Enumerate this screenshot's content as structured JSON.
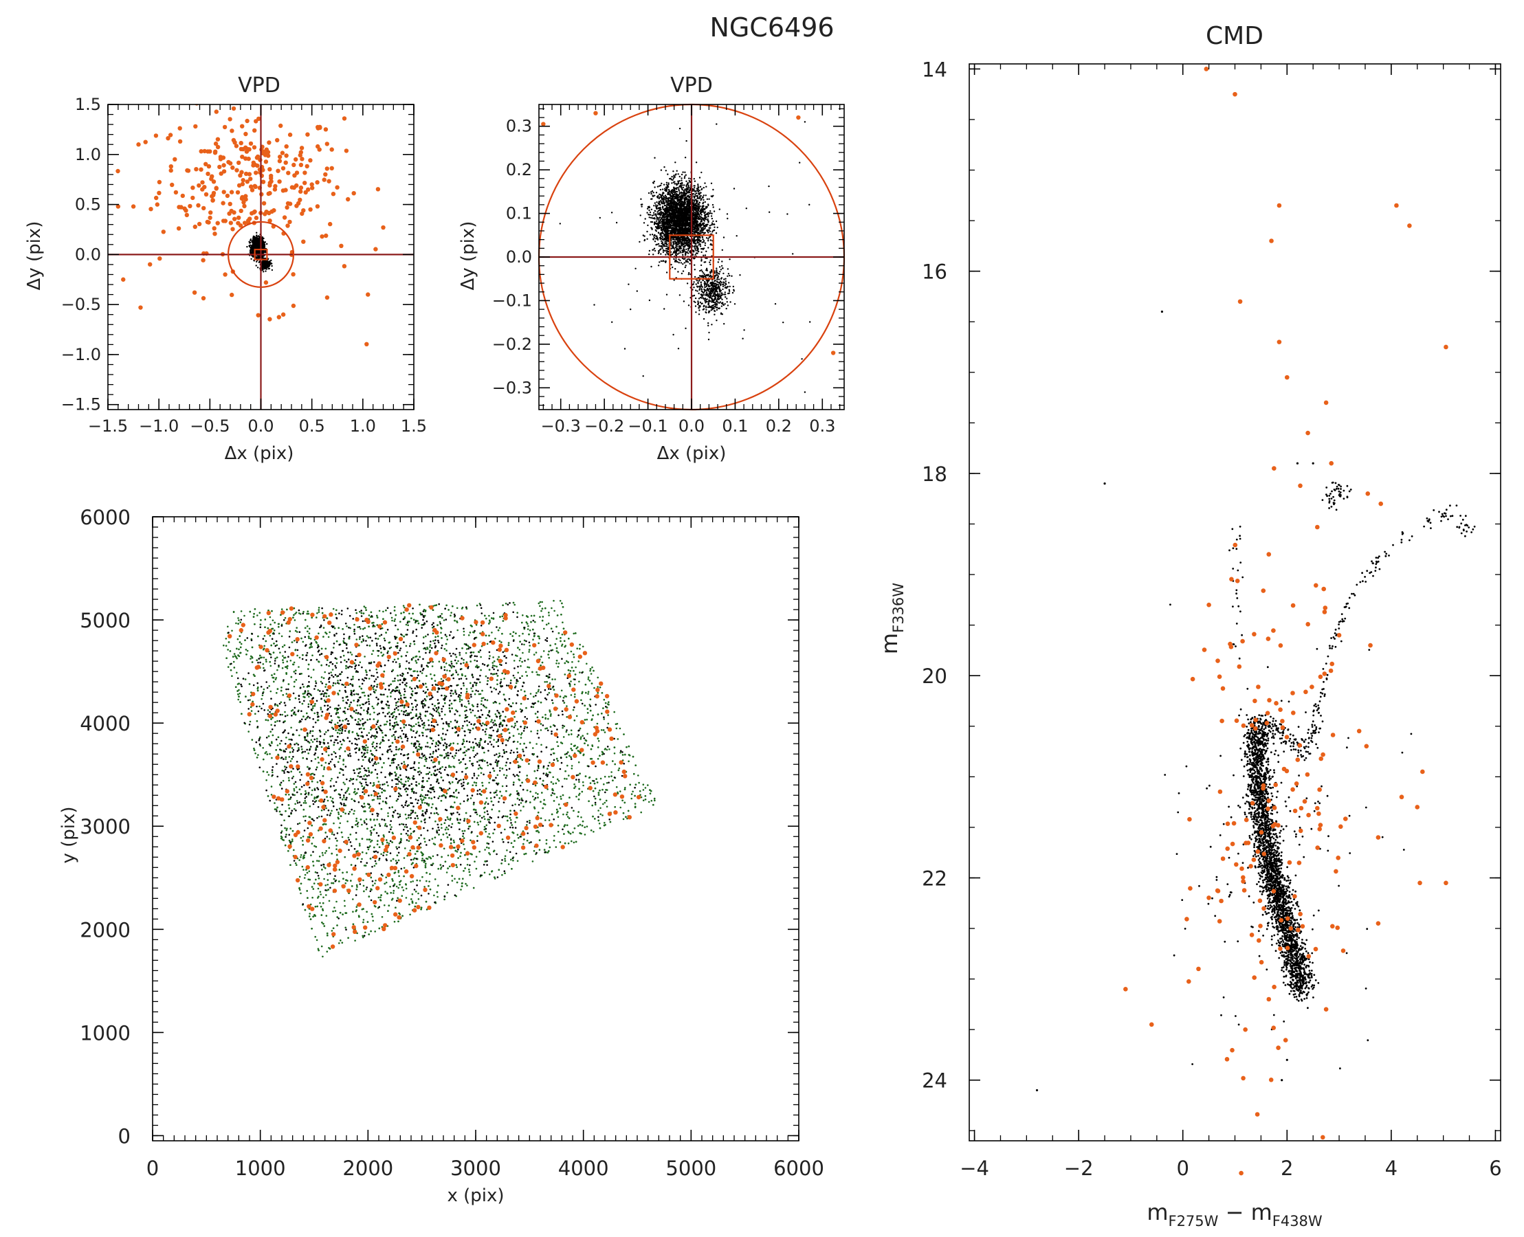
{
  "figure_title": "NGC6496",
  "chart_data": [
    {
      "id": "vpd1",
      "type": "scatter",
      "title": "VPD",
      "xlabel_parts": [
        "Δx",
        " (pix)"
      ],
      "ylabel_parts": [
        "Δy",
        " (pix)"
      ],
      "xlim": [
        -1.5,
        1.5
      ],
      "ylim": [
        -1.55,
        1.5
      ],
      "xticks": [
        -1.5,
        -1.0,
        -0.5,
        0.0,
        0.5,
        1.0,
        1.5
      ],
      "xtick_labels": [
        "−1.5",
        "−1.0",
        "−0.5",
        "0.0",
        "0.5",
        "1.0",
        "1.5"
      ],
      "yticks": [
        -1.5,
        -1.0,
        -0.5,
        0.0,
        0.5,
        1.0,
        1.5
      ],
      "ytick_labels": [
        "−1.5",
        "−1.0",
        "−0.5",
        "0.0",
        "0.5",
        "1.0",
        "1.5"
      ],
      "crosshair": [
        0,
        0
      ],
      "selection_circle": {
        "center": [
          0,
          0
        ],
        "radius": 0.32
      },
      "selection_box": {
        "x": [
          -0.06,
          0.06
        ],
        "y": [
          -0.05,
          0.05
        ]
      },
      "series": [
        {
          "color": "#e8611a",
          "kind": "field",
          "clouds": [
            {
              "n": 290,
              "cx": -0.1,
              "cy": 0.75,
              "sx": 0.45,
              "sy": 0.35
            },
            {
              "n": 26,
              "cx": -0.2,
              "cy": 0.0,
              "sx": 0.55,
              "sy": 0.35
            }
          ],
          "points": [
            [
              -1.4,
              0.48
            ],
            [
              -1.25,
              0.48
            ],
            [
              -1.2,
              1.1
            ],
            [
              -1.18,
              -0.53
            ],
            [
              -1.35,
              -0.25
            ],
            [
              -0.65,
              -0.38
            ],
            [
              1.05,
              -0.4
            ],
            [
              1.2,
              0.27
            ],
            [
              0.65,
              -0.43
            ],
            [
              0.22,
              -0.6
            ],
            [
              0.05,
              -0.28
            ],
            [
              0.5,
              0.7
            ],
            [
              -0.35,
              -0.2
            ],
            [
              0.6,
              0.18
            ]
          ]
        },
        {
          "color": "#000000",
          "kind": "cluster",
          "clouds": [
            {
              "n": 1400,
              "cx": -0.03,
              "cy": 0.07,
              "sx": 0.028,
              "sy": 0.045
            },
            {
              "n": 260,
              "cx": 0.04,
              "cy": -0.09,
              "sx": 0.025,
              "sy": 0.03
            }
          ],
          "points": []
        }
      ]
    },
    {
      "id": "vpd2",
      "type": "scatter",
      "title": "VPD",
      "xlabel_parts": [
        "Δx",
        " (pix)"
      ],
      "ylabel_parts": [
        "Δy",
        " (pix)"
      ],
      "xlim": [
        -0.35,
        0.35
      ],
      "ylim": [
        -0.35,
        0.35
      ],
      "xticks": [
        -0.3,
        -0.2,
        -0.1,
        0.0,
        0.1,
        0.2,
        0.3
      ],
      "xtick_labels": [
        "−0.3",
        "−0.2",
        "−0.1",
        "0.0",
        "0.1",
        "0.2",
        "0.3"
      ],
      "yticks": [
        -0.3,
        -0.2,
        -0.1,
        0.0,
        0.1,
        0.2,
        0.3
      ],
      "ytick_labels": [
        "−0.3",
        "−0.2",
        "−0.1",
        "0.0",
        "0.1",
        "0.2",
        "0.3"
      ],
      "crosshair": [
        0,
        0
      ],
      "selection_circle": {
        "center": [
          0,
          0
        ],
        "radius": 0.35
      },
      "selection_box": {
        "x": [
          -0.05,
          0.05
        ],
        "y": [
          -0.05,
          0.05
        ]
      },
      "series": [
        {
          "color": "#e8611a",
          "kind": "field",
          "clouds": [],
          "points": [
            [
              -0.34,
              0.305
            ],
            [
              -0.22,
              0.33
            ],
            [
              0.245,
              0.32
            ],
            [
              0.325,
              -0.22
            ]
          ]
        },
        {
          "color": "#000000",
          "kind": "cluster",
          "clouds": [
            {
              "n": 3200,
              "cx": -0.025,
              "cy": 0.085,
              "sx": 0.03,
              "sy": 0.04
            },
            {
              "n": 520,
              "cx": 0.045,
              "cy": -0.075,
              "sx": 0.02,
              "sy": 0.028
            },
            {
              "n": 55,
              "cx": 0.0,
              "cy": 0.0,
              "sx": 0.13,
              "sy": 0.13
            }
          ],
          "points": [
            [
              -0.21,
              0.09
            ],
            [
              -0.14,
              -0.12
            ],
            [
              -0.03,
              -0.21
            ],
            [
              0.26,
              -0.31
            ],
            [
              0.21,
              -0.15
            ],
            [
              0.26,
              0.31
            ],
            [
              0.27,
              0.12
            ]
          ]
        }
      ]
    },
    {
      "id": "map",
      "type": "scatter",
      "title": "",
      "xlabel_parts": [
        "x (pix)"
      ],
      "ylabel_parts": [
        "y (pix)"
      ],
      "xlim": [
        0,
        6000
      ],
      "ylim": [
        -50,
        6000
      ],
      "xticks": [
        0,
        1000,
        2000,
        3000,
        4000,
        5000,
        6000
      ],
      "xtick_labels": [
        "0",
        "1000",
        "2000",
        "3000",
        "4000",
        "5000",
        "6000"
      ],
      "yticks": [
        0,
        1000,
        2000,
        3000,
        4000,
        5000,
        6000
      ],
      "ytick_labels": [
        "0",
        "1000",
        "2000",
        "3000",
        "4000",
        "5000",
        "6000"
      ],
      "footprint": [
        [
          620,
          4760
        ],
        [
          760,
          5100
        ],
        [
          3800,
          5190
        ],
        [
          4700,
          3210
        ],
        [
          1550,
          1720
        ]
      ],
      "series": [
        {
          "color": "#1f6b1f",
          "kind": "green",
          "n": 5200
        },
        {
          "color": "#000000",
          "kind": "black",
          "n": 1900,
          "center": [
            2300,
            3900
          ]
        },
        {
          "color": "#e8611a",
          "kind": "orange",
          "n": 300
        }
      ]
    },
    {
      "id": "cmd",
      "type": "scatter",
      "title": "CMD",
      "xlabel": "m_F275W − m_F438W",
      "ylabel": "m_F336W",
      "xlim": [
        -4.1,
        6.1
      ],
      "ylim": [
        24.6,
        13.95
      ],
      "xticks": [
        -4,
        -2,
        0,
        2,
        4,
        6
      ],
      "xtick_labels": [
        "−4",
        "−2",
        "0",
        "2",
        "4",
        "6"
      ],
      "yticks": [
        14,
        16,
        18,
        20,
        22,
        24
      ],
      "ytick_labels": [
        "14",
        "16",
        "18",
        "20",
        "22",
        "24"
      ],
      "series": [
        {
          "color": "#000000",
          "kind": "members",
          "main_sequence": [
            [
              1.4,
              20.5
            ],
            [
              1.45,
              21.0
            ],
            [
              1.55,
              21.5
            ],
            [
              1.7,
              21.95
            ],
            [
              1.9,
              22.3
            ],
            [
              2.1,
              22.7
            ],
            [
              2.3,
              23.1
            ]
          ],
          "subgiant": [
            [
              1.45,
              20.55
            ],
            [
              1.7,
              20.5
            ],
            [
              2.0,
              20.6
            ],
            [
              2.3,
              20.75
            ],
            [
              2.5,
              20.6
            ],
            [
              2.6,
              20.3
            ]
          ],
          "rgb": [
            [
              2.6,
              20.3
            ],
            [
              2.8,
              19.8
            ],
            [
              3.1,
              19.4
            ],
            [
              3.5,
              19.0
            ],
            [
              4.0,
              18.75
            ],
            [
              4.6,
              18.5
            ],
            [
              5.1,
              18.4
            ],
            [
              5.6,
              18.6
            ]
          ],
          "red_clump": [
            2.95,
            18.2
          ],
          "blue_stragglers": [
            [
              1.0,
              18.5
            ],
            [
              1.05,
              18.9
            ],
            [
              1.0,
              19.3
            ],
            [
              1.1,
              19.8
            ]
          ],
          "points": [
            [
              -1.5,
              18.1
            ],
            [
              -0.4,
              16.4
            ],
            [
              -2.8,
              24.1
            ],
            [
              2.2,
              17.9
            ],
            [
              2.5,
              17.9
            ],
            [
              1.9,
              24.0
            ],
            [
              2.0,
              23.8
            ]
          ]
        },
        {
          "color": "#e8611a",
          "kind": "field",
          "points": [
            [
              0.45,
              14.0
            ],
            [
              1.0,
              14.25
            ],
            [
              1.85,
              15.35
            ],
            [
              1.7,
              15.7
            ],
            [
              4.1,
              15.35
            ],
            [
              4.35,
              15.55
            ],
            [
              1.1,
              16.3
            ],
            [
              5.05,
              16.75
            ],
            [
              1.85,
              16.7
            ],
            [
              2.0,
              17.05
            ],
            [
              2.75,
              17.3
            ],
            [
              2.4,
              17.6
            ],
            [
              1.75,
              17.95
            ],
            [
              2.85,
              17.9
            ],
            [
              3.55,
              18.2
            ],
            [
              3.8,
              18.3
            ],
            [
              1.65,
              18.8
            ],
            [
              0.5,
              19.3
            ],
            [
              3.0,
              19.6
            ],
            [
              3.6,
              19.7
            ],
            [
              -1.1,
              23.1
            ],
            [
              -0.6,
              23.45
            ],
            [
              0.3,
              22.9
            ],
            [
              1.2,
              23.5
            ],
            [
              2.75,
              23.3
            ],
            [
              3.75,
              21.6
            ],
            [
              4.2,
              21.2
            ],
            [
              4.5,
              21.3
            ],
            [
              4.6,
              20.95
            ],
            [
              5.05,
              22.05
            ],
            [
              4.55,
              22.05
            ],
            [
              3.75,
              22.45
            ],
            [
              1.65,
              23.2
            ]
          ],
          "scatter_cloud": {
            "n": 150,
            "cx": 1.7,
            "cy": 21.3,
            "sx": 0.75,
            "sy": 1.2
          }
        }
      ]
    }
  ]
}
